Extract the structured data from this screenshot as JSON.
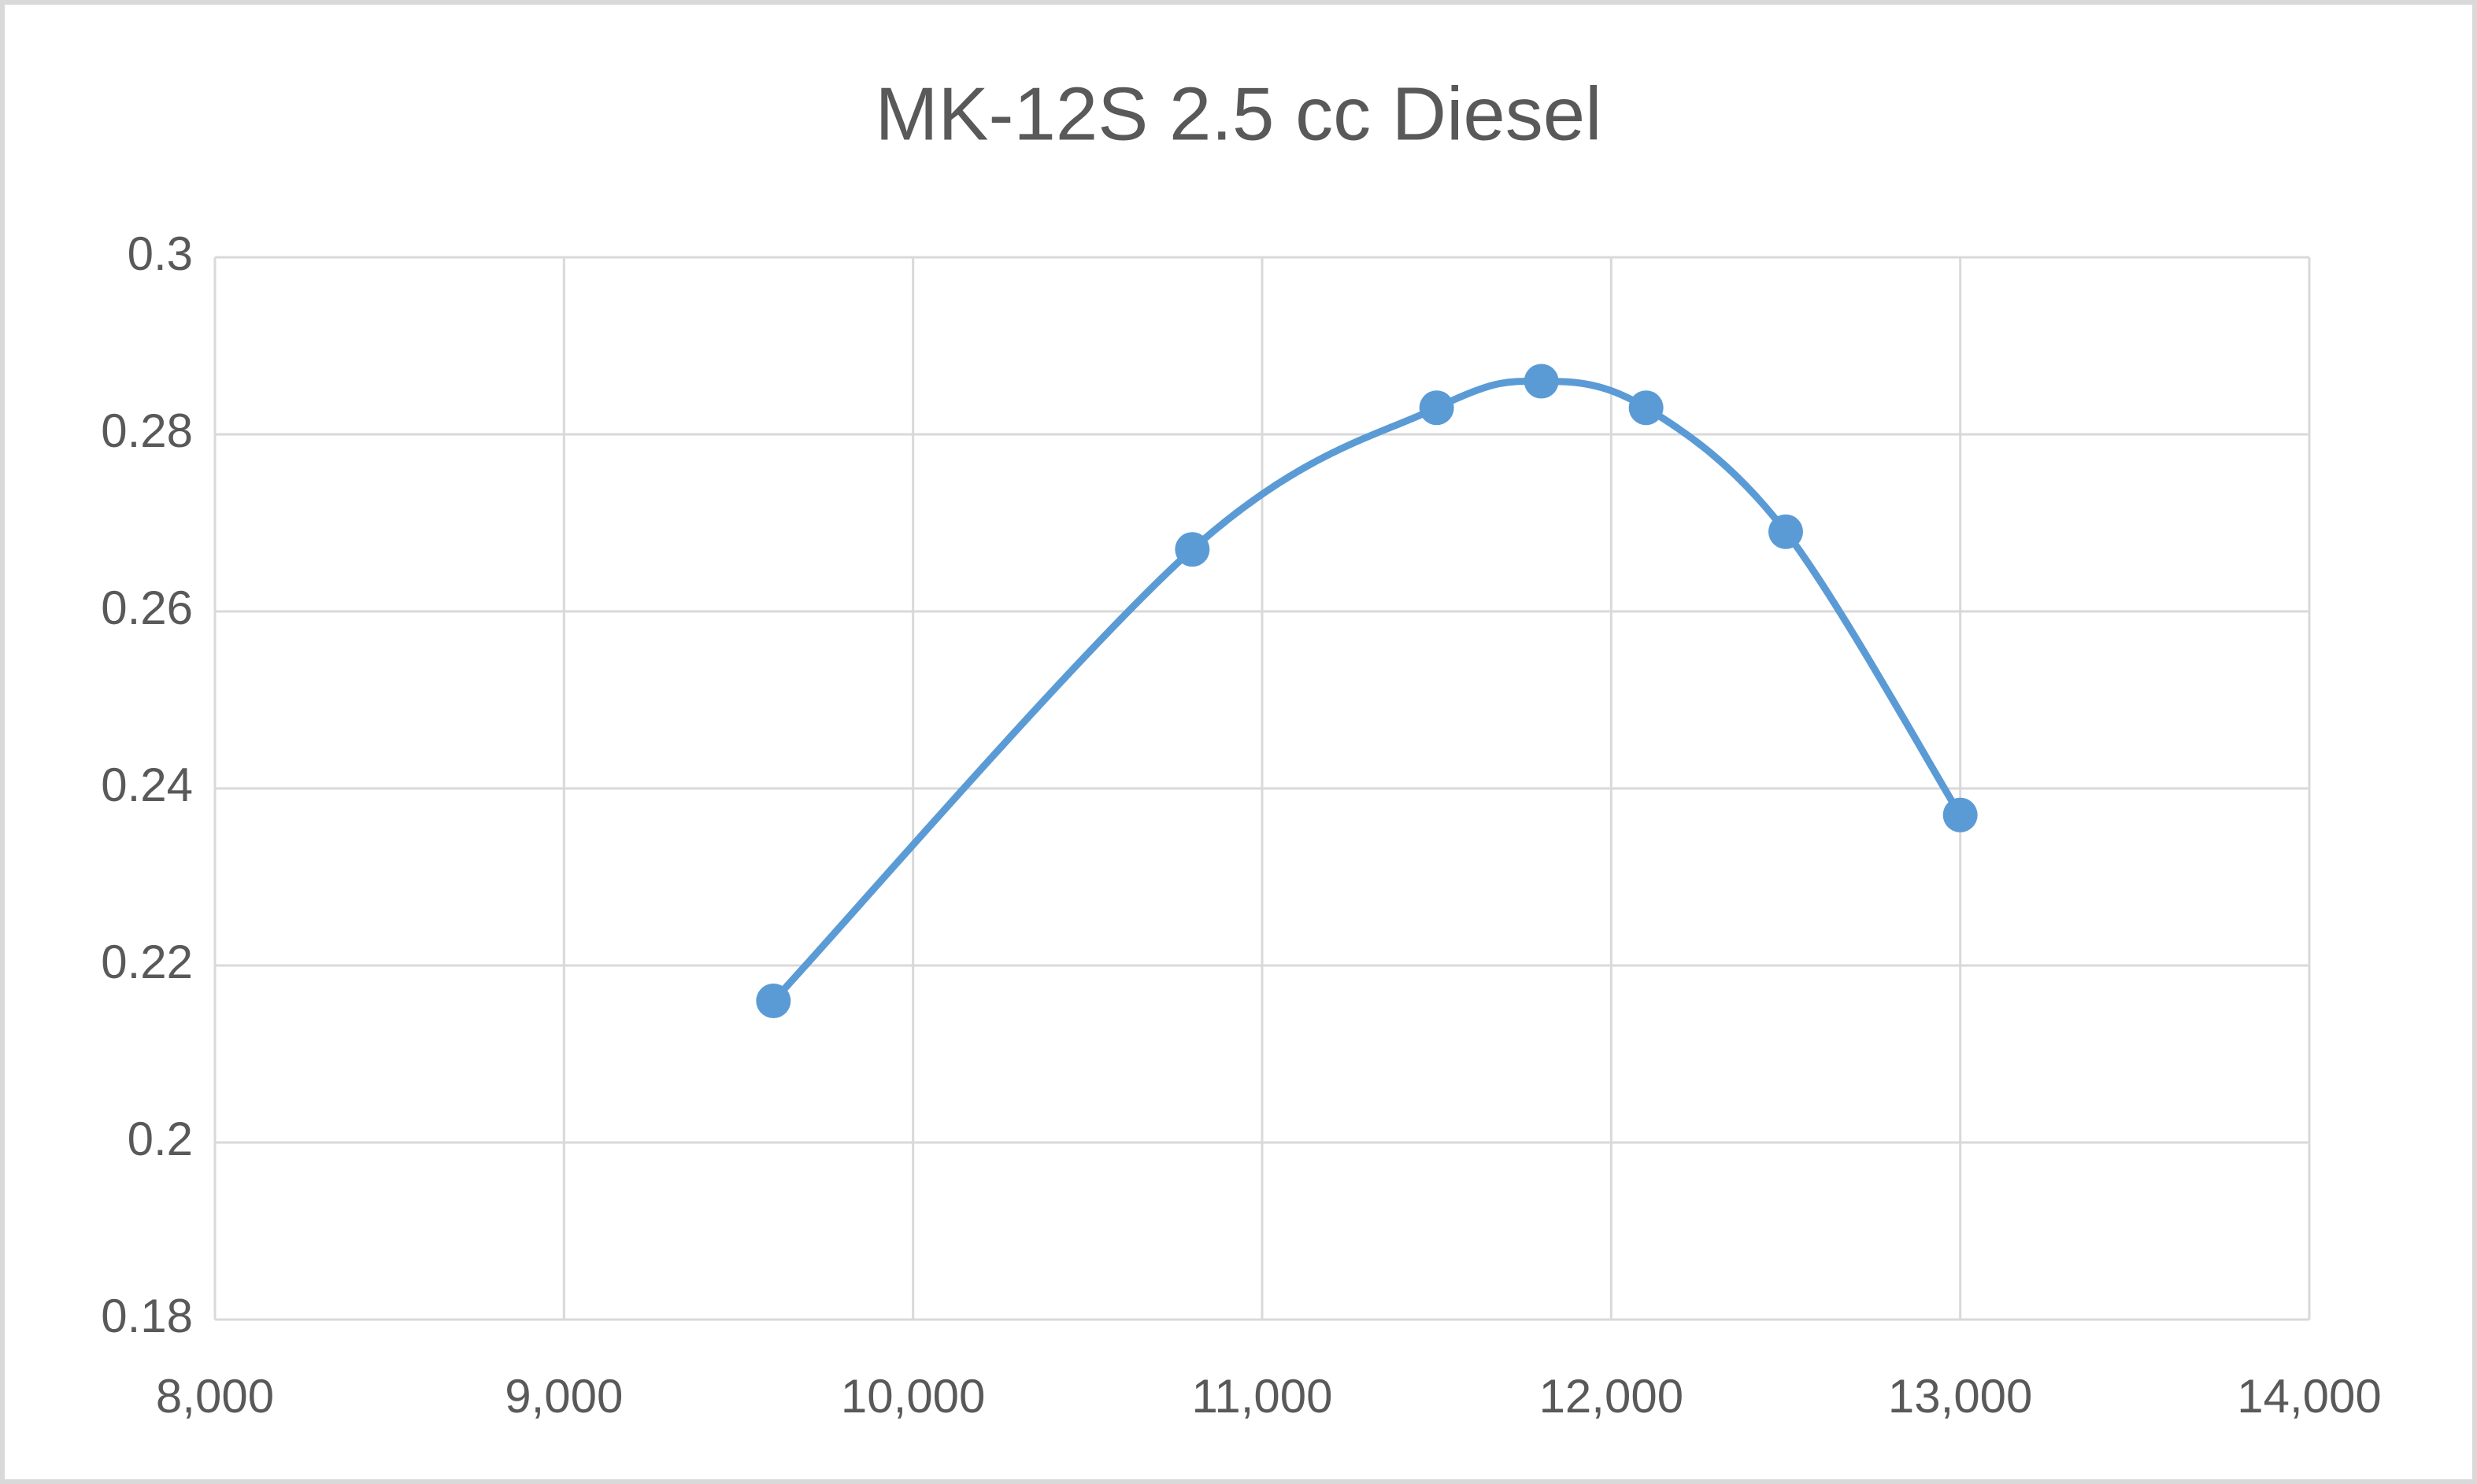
{
  "chart_data": {
    "type": "line",
    "title": "MK-12S 2.5 cc Diesel",
    "x": [
      9600,
      10800,
      11500,
      11800,
      12100,
      12500,
      13000
    ],
    "series": [
      {
        "color": "#5b9bd5",
        "values": [
          0.216,
          0.267,
          0.283,
          0.286,
          0.283,
          0.269,
          0.237
        ]
      }
    ],
    "smooth": true,
    "markers": true,
    "grid": true,
    "xlim": [
      8000,
      14000
    ],
    "xticks": [
      {
        "value": 8000,
        "label": "8,000"
      },
      {
        "value": 9000,
        "label": "9,000"
      },
      {
        "value": 10000,
        "label": "10,000"
      },
      {
        "value": 11000,
        "label": "11,000"
      },
      {
        "value": 12000,
        "label": "12,000"
      },
      {
        "value": 13000,
        "label": "13,000"
      },
      {
        "value": 14000,
        "label": "14,000"
      }
    ],
    "ylim": [
      0.18,
      0.3
    ],
    "yticks": [
      0.18,
      0.2,
      0.22,
      0.24,
      0.26,
      0.28,
      0.3
    ]
  }
}
